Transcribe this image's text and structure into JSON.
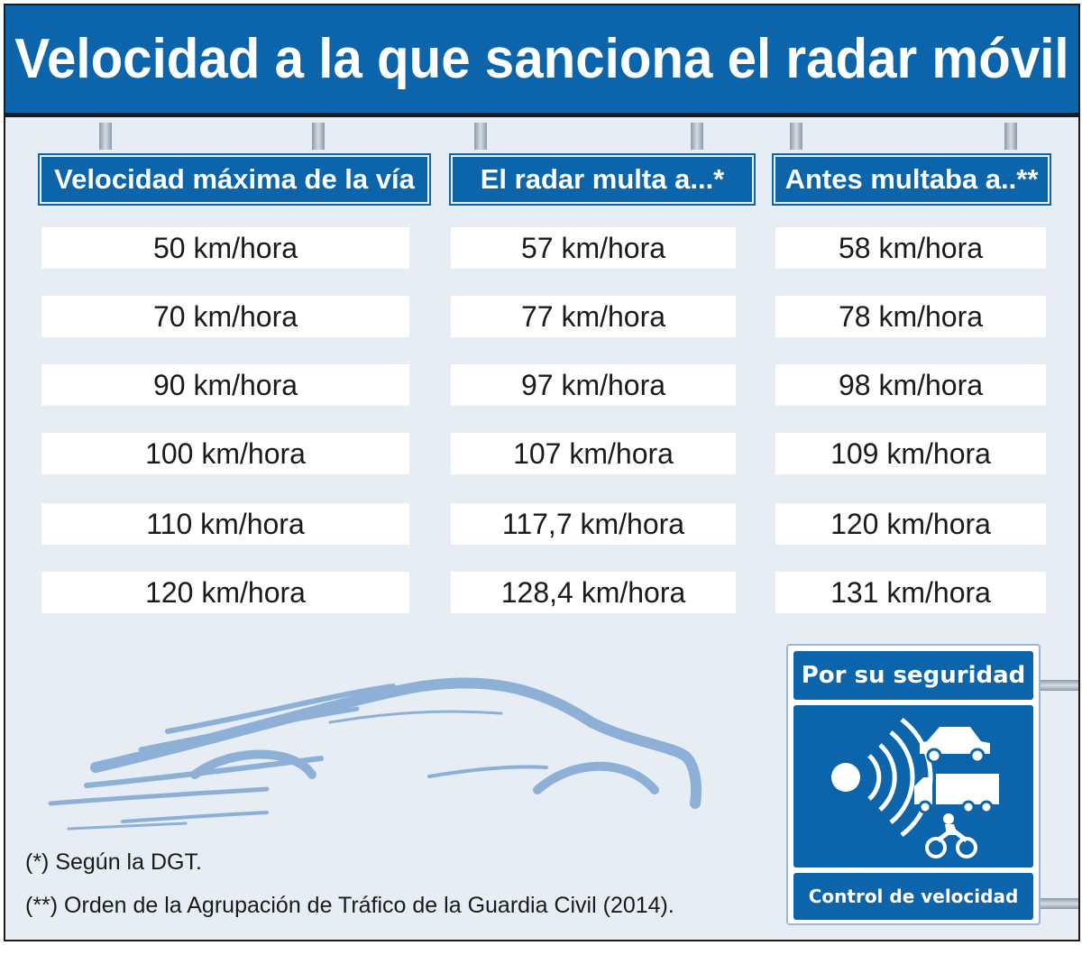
{
  "title": "Velocidad a la que sanciona el radar móvil",
  "columns": [
    "Velocidad máxima de la vía",
    "El radar multa a...*",
    "Antes multaba a..**"
  ],
  "rows": [
    [
      "50 km/hora",
      "57 km/hora",
      "58 km/hora"
    ],
    [
      "70 km/hora",
      "77 km/hora",
      "78 km/hora"
    ],
    [
      "90 km/hora",
      "97 km/hora",
      "98 km/hora"
    ],
    [
      "100 km/hora",
      "107 km/hora",
      "109 km/hora"
    ],
    [
      "110 km/hora",
      "117,7 km/hora",
      "120 km/hora"
    ],
    [
      "120 km/hora",
      "128,4 km/hora",
      "131 km/hora"
    ]
  ],
  "notes": {
    "note1": "(*) Según la DGT.",
    "note2": "(**) Orden de la Agrupación de Tráfico de la Guardia Civil (2014)."
  },
  "sign": {
    "top_label": "Por su seguridad",
    "bottom_label": "Control de velocidad",
    "icons": [
      "radar-icon",
      "car-icon",
      "truck-icon",
      "motorcycle-icon"
    ]
  },
  "colors": {
    "brand_blue": "#0c65ab",
    "background": "#e6edf5",
    "cell_bg": "#ffffff",
    "car_outline": "#8fb0d6"
  }
}
